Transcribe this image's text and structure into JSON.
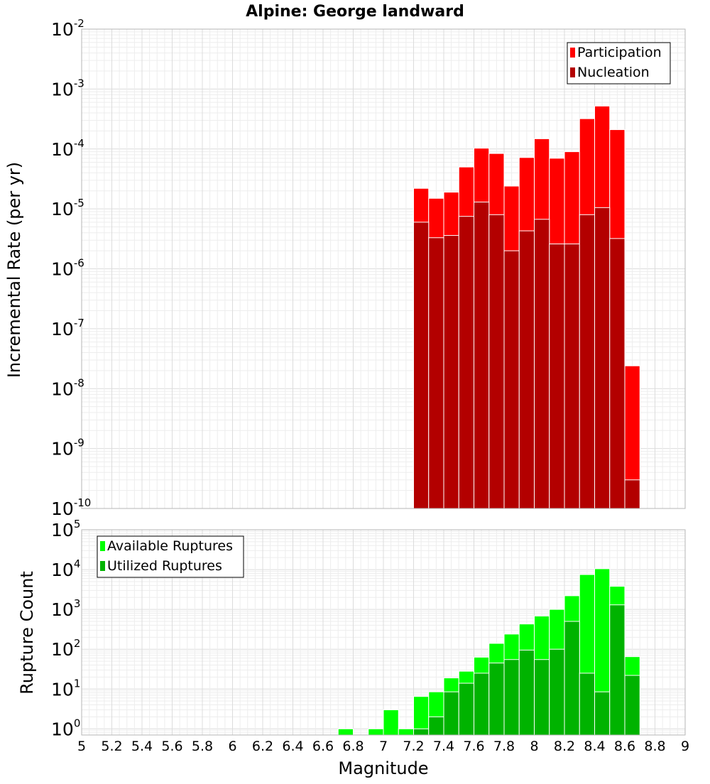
{
  "title": "Alpine: George landward",
  "colors": {
    "participation": "#ff0000",
    "nucleation": "#b30000",
    "available": "#00ff00",
    "utilized": "#00b300"
  },
  "chart_data": [
    {
      "type": "bar",
      "panel": "top",
      "title": "Alpine: George landward",
      "xlabel": "Magnitude",
      "ylabel": "Incremental Rate (per yr)",
      "xlim": [
        5,
        9
      ],
      "ylim": [
        1e-10,
        0.01
      ],
      "yscale": "log",
      "grid": true,
      "legend_position": "top-right",
      "bin_width": 0.1,
      "x": [
        7.25,
        7.35,
        7.45,
        7.55,
        7.65,
        7.75,
        7.85,
        7.95,
        8.05,
        8.15,
        8.25,
        8.35,
        8.45,
        8.55,
        8.65
      ],
      "series": [
        {
          "name": "Participation",
          "color": "#ff0000",
          "values": [
            2.2e-05,
            1.5e-05,
            1.9e-05,
            5e-05,
            0.000103,
            8.4e-05,
            2.4e-05,
            7.2e-05,
            0.000148,
            7e-05,
            9e-05,
            0.00032,
            0.00052,
            0.00021,
            2.4e-08
          ]
        },
        {
          "name": "Nucleation",
          "color": "#b30000",
          "values": [
            6e-06,
            3.3e-06,
            3.6e-06,
            7.5e-06,
            1.3e-05,
            8e-06,
            2e-06,
            4.3e-06,
            6.7e-06,
            2.6e-06,
            2.6e-06,
            8e-06,
            1.05e-05,
            3.2e-06,
            3e-10
          ]
        }
      ],
      "y_ticks": [
        {
          "base": "10",
          "exp": "-10",
          "value": 1e-10
        },
        {
          "base": "10",
          "exp": "-9",
          "value": 1e-09
        },
        {
          "base": "10",
          "exp": "-8",
          "value": 1e-08
        },
        {
          "base": "10",
          "exp": "-7",
          "value": 1e-07
        },
        {
          "base": "10",
          "exp": "-6",
          "value": 1e-06
        },
        {
          "base": "10",
          "exp": "-5",
          "value": 1e-05
        },
        {
          "base": "10",
          "exp": "-4",
          "value": 0.0001
        },
        {
          "base": "10",
          "exp": "-3",
          "value": 0.001
        },
        {
          "base": "10",
          "exp": "-2",
          "value": 0.01
        }
      ]
    },
    {
      "type": "bar",
      "panel": "bottom",
      "xlabel": "Magnitude",
      "ylabel": "Rupture Count",
      "xlim": [
        5,
        9
      ],
      "ylim": [
        0.7,
        100000
      ],
      "yscale": "log",
      "grid": true,
      "legend_position": "top-left",
      "bin_width": 0.1,
      "x": [
        6.75,
        6.85,
        6.95,
        7.05,
        7.15,
        7.25,
        7.35,
        7.45,
        7.55,
        7.65,
        7.75,
        7.85,
        7.95,
        8.05,
        8.15,
        8.25,
        8.35,
        8.45,
        8.55,
        8.65
      ],
      "series": [
        {
          "name": "Available Ruptures",
          "color": "#00ff00",
          "values": [
            1,
            null,
            1,
            3,
            1,
            6.5,
            8.5,
            19,
            28,
            63,
            140,
            240,
            430,
            680,
            1000,
            2200,
            7500,
            10500,
            3800,
            65
          ]
        },
        {
          "name": "Utilized Ruptures",
          "color": "#00b300",
          "values": [
            null,
            null,
            null,
            null,
            null,
            1,
            2,
            8.5,
            14,
            25,
            45,
            55,
            95,
            55,
            100,
            500,
            25,
            8.5,
            1300,
            22
          ]
        }
      ],
      "y_ticks": [
        {
          "base": "10",
          "exp": "0",
          "value": 1
        },
        {
          "base": "10",
          "exp": "1",
          "value": 10
        },
        {
          "base": "10",
          "exp": "2",
          "value": 100
        },
        {
          "base": "10",
          "exp": "3",
          "value": 1000
        },
        {
          "base": "10",
          "exp": "4",
          "value": 10000
        },
        {
          "base": "10",
          "exp": "5",
          "value": 100000
        }
      ]
    }
  ],
  "x_ticks": [
    "5",
    "5.2",
    "5.4",
    "5.6",
    "5.8",
    "6",
    "6.2",
    "6.4",
    "6.6",
    "6.8",
    "7",
    "7.2",
    "7.4",
    "7.6",
    "7.8",
    "8",
    "8.2",
    "8.4",
    "8.6",
    "8.8",
    "9"
  ]
}
